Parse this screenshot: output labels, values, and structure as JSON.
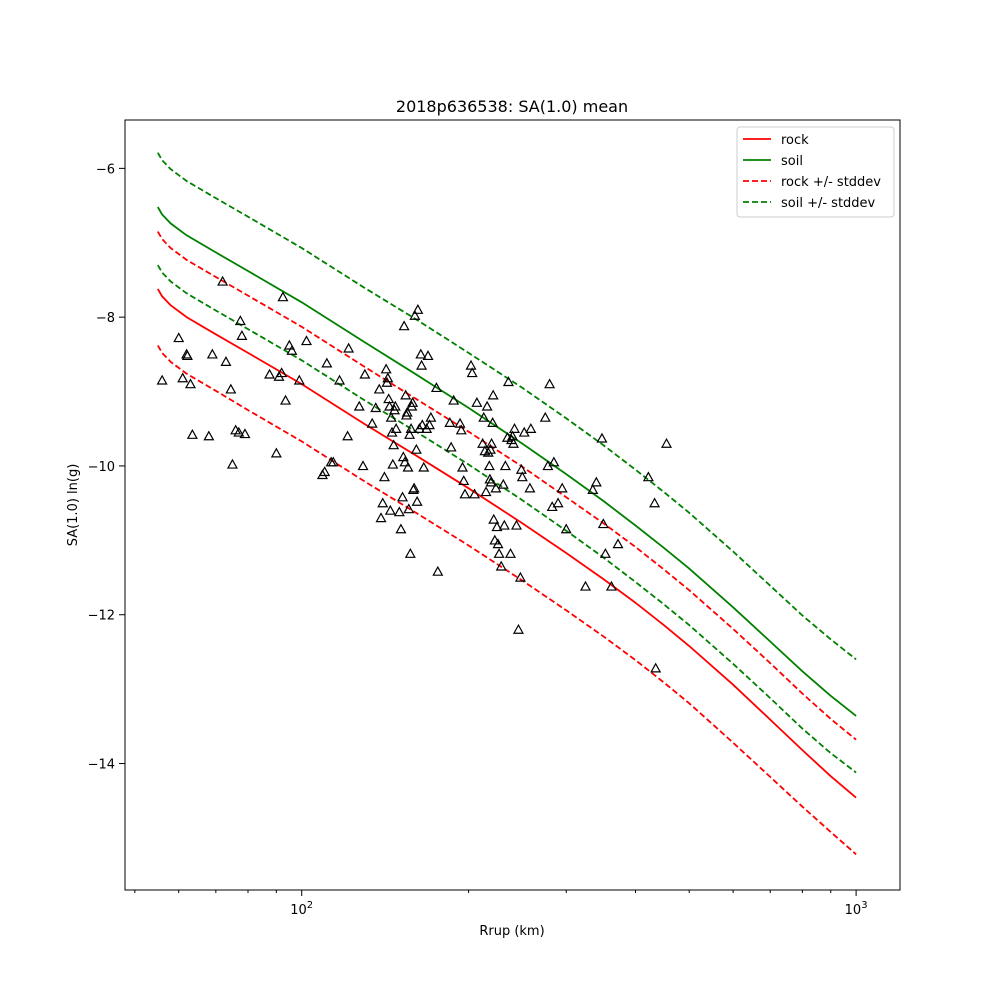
{
  "chart_data": {
    "type": "scatter",
    "title": "2018p636538: SA(1.0) mean",
    "xlabel": "Rrup (km)",
    "ylabel": "SA(1.0) ln(g)",
    "x_scale": "log",
    "xlim": [
      48,
      1200
    ],
    "ylim": [
      -15.7,
      -5.35
    ],
    "x_tick_labels": [
      {
        "value": 100,
        "base": "10",
        "exponent": "2"
      },
      {
        "value": 1000,
        "base": "10",
        "exponent": "3"
      }
    ],
    "y_ticks": [
      -14,
      -12,
      -10,
      -8,
      -6
    ],
    "grid": false,
    "legend_position": "upper right",
    "legend": [
      {
        "label": "rock",
        "color": "#ff0000",
        "style": "solid"
      },
      {
        "label": "soil",
        "color": "#008000",
        "style": "solid"
      },
      {
        "label": "rock +/- stddev",
        "color": "#ff0000",
        "style": "dashed"
      },
      {
        "label": "soil +/- stddev",
        "color": "#008000",
        "style": "dashed"
      }
    ],
    "curves": {
      "x": [
        55,
        56,
        58,
        62,
        70,
        80,
        100,
        130,
        160,
        200,
        250,
        300,
        350,
        400,
        450,
        500,
        600,
        700,
        800,
        900,
        1000
      ],
      "rock": [
        -7.62,
        -7.72,
        -7.84,
        -8.0,
        -8.23,
        -8.48,
        -8.9,
        -9.44,
        -9.85,
        -10.3,
        -10.77,
        -11.17,
        -11.52,
        -11.84,
        -12.14,
        -12.42,
        -12.94,
        -13.41,
        -13.82,
        -14.17,
        -14.46
      ],
      "soil": [
        -6.52,
        -6.62,
        -6.74,
        -6.9,
        -7.13,
        -7.38,
        -7.8,
        -8.34,
        -8.76,
        -9.22,
        -9.7,
        -10.11,
        -10.47,
        -10.8,
        -11.1,
        -11.38,
        -11.9,
        -12.36,
        -12.76,
        -13.09,
        -13.36
      ],
      "rock_plus_stddev": [
        -6.85,
        -6.95,
        -7.07,
        -7.23,
        -7.46,
        -7.71,
        -8.13,
        -8.67,
        -9.09,
        -9.54,
        -10.01,
        -10.42,
        -10.77,
        -11.09,
        -11.39,
        -11.67,
        -12.19,
        -12.65,
        -13.06,
        -13.4,
        -13.68
      ],
      "rock_minus_stddev": [
        -8.38,
        -8.48,
        -8.6,
        -8.76,
        -8.99,
        -9.25,
        -9.67,
        -10.21,
        -10.62,
        -11.07,
        -11.54,
        -11.94,
        -12.29,
        -12.61,
        -12.91,
        -13.19,
        -13.72,
        -14.18,
        -14.58,
        -14.92,
        -15.22
      ],
      "soil_plus_stddev": [
        -5.79,
        -5.89,
        -6.01,
        -6.17,
        -6.4,
        -6.65,
        -7.07,
        -7.61,
        -8.02,
        -8.48,
        -8.95,
        -9.36,
        -9.72,
        -10.05,
        -10.35,
        -10.63,
        -11.15,
        -11.61,
        -12.01,
        -12.33,
        -12.6
      ],
      "soil_minus_stddev": [
        -7.3,
        -7.4,
        -7.52,
        -7.68,
        -7.91,
        -8.16,
        -8.58,
        -9.12,
        -9.53,
        -9.98,
        -10.46,
        -10.87,
        -11.23,
        -11.56,
        -11.86,
        -12.14,
        -12.66,
        -13.12,
        -13.53,
        -13.86,
        -14.12
      ]
    },
    "observations": {
      "name": "observed",
      "marker": "triangle",
      "points": [
        [
          56,
          -8.85
        ],
        [
          60,
          -8.28
        ],
        [
          61,
          -8.82
        ],
        [
          62,
          -8.5
        ],
        [
          62.2,
          -8.52
        ],
        [
          63,
          -8.9
        ],
        [
          63.5,
          -9.58
        ],
        [
          68,
          -9.6
        ],
        [
          69,
          -8.5
        ],
        [
          73,
          -8.6
        ],
        [
          74.5,
          -8.97
        ],
        [
          75,
          -9.98
        ],
        [
          76,
          -9.52
        ],
        [
          77,
          -9.55
        ],
        [
          77.5,
          -8.05
        ],
        [
          78,
          -8.25
        ],
        [
          79,
          -9.57
        ],
        [
          72,
          -7.52
        ],
        [
          87.5,
          -8.77
        ],
        [
          90,
          -9.83
        ],
        [
          91,
          -8.8
        ],
        [
          92,
          -8.75
        ],
        [
          92.5,
          -7.73
        ],
        [
          93.5,
          -9.12
        ],
        [
          95,
          -8.38
        ],
        [
          96,
          -8.45
        ],
        [
          99,
          -8.85
        ],
        [
          102,
          -8.32
        ],
        [
          109,
          -10.12
        ],
        [
          110,
          -10.08
        ],
        [
          111,
          -8.62
        ],
        [
          113,
          -9.95
        ],
        [
          114,
          -9.95
        ],
        [
          117,
          -8.85
        ],
        [
          121,
          -9.6
        ],
        [
          121.5,
          -8.42
        ],
        [
          127,
          -9.2
        ],
        [
          129,
          -10
        ],
        [
          130,
          -8.77
        ],
        [
          134,
          -9.43
        ],
        [
          136,
          -9.22
        ],
        [
          138,
          -8.97
        ],
        [
          139,
          -10.7
        ],
        [
          140,
          -10.5
        ],
        [
          141,
          -10.15
        ],
        [
          142,
          -8.7
        ],
        [
          142.5,
          -8.88
        ],
        [
          143,
          -8.82
        ],
        [
          143.5,
          -9.1
        ],
        [
          144,
          -9.2
        ],
        [
          144.5,
          -10.6
        ],
        [
          145,
          -9.35
        ],
        [
          145.5,
          -9.55
        ],
        [
          146,
          -9.98
        ],
        [
          146.5,
          -9.72
        ],
        [
          147,
          -9.25
        ],
        [
          147.5,
          -9.2
        ],
        [
          148,
          -9.5
        ],
        [
          150,
          -10.62
        ],
        [
          151,
          -10.85
        ],
        [
          152,
          -10.42
        ],
        [
          152.5,
          -9.88
        ],
        [
          153,
          -8.12
        ],
        [
          153.5,
          -9.95
        ],
        [
          154,
          -9.05
        ],
        [
          154.5,
          -9.32
        ],
        [
          155,
          -9.28
        ],
        [
          155.5,
          -10.02
        ],
        [
          156,
          -10.58
        ],
        [
          156.5,
          -9.58
        ],
        [
          157,
          -11.18
        ],
        [
          157.5,
          -9.5
        ],
        [
          158,
          -9.2
        ],
        [
          158.5,
          -9.15
        ],
        [
          159,
          -10.32
        ],
        [
          159.5,
          -10.3
        ],
        [
          160,
          -7.98
        ],
        [
          161,
          -9.78
        ],
        [
          161.5,
          -10.48
        ],
        [
          162,
          -7.9
        ],
        [
          163,
          -9.5
        ],
        [
          164,
          -8.5
        ],
        [
          164.5,
          -8.65
        ],
        [
          165,
          -9.45
        ],
        [
          166,
          -10.02
        ],
        [
          168,
          -9.5
        ],
        [
          169,
          -8.52
        ],
        [
          170,
          -9.45
        ],
        [
          171,
          -9.35
        ],
        [
          175,
          -8.95
        ],
        [
          176,
          -11.42
        ],
        [
          185,
          -9.42
        ],
        [
          186,
          -9.75
        ],
        [
          188,
          -9.12
        ],
        [
          193,
          -9.43
        ],
        [
          194,
          -9.52
        ],
        [
          195,
          -10.02
        ],
        [
          196,
          -10.2
        ],
        [
          197,
          -10.38
        ],
        [
          202,
          -8.65
        ],
        [
          203,
          -8.75
        ],
        [
          205,
          -10.38
        ],
        [
          207,
          -9.15
        ],
        [
          212,
          -9.7
        ],
        [
          213,
          -9.35
        ],
        [
          214,
          -9.8
        ],
        [
          215,
          -10.35
        ],
        [
          216,
          -9.2
        ],
        [
          217,
          -9.82
        ],
        [
          218,
          -10.0
        ],
        [
          218.5,
          -10.18
        ],
        [
          219,
          -9.78
        ],
        [
          219.5,
          -10.22
        ],
        [
          220,
          -9.7
        ],
        [
          221,
          -9.42
        ],
        [
          221.5,
          -9.05
        ],
        [
          222,
          -10.72
        ],
        [
          223,
          -11.0
        ],
        [
          224,
          -10.3
        ],
        [
          225,
          -10.82
        ],
        [
          226,
          -11.05
        ],
        [
          227,
          -11.18
        ],
        [
          229,
          -11.35
        ],
        [
          231,
          -10.25
        ],
        [
          232,
          -10.8
        ],
        [
          233,
          -10.0
        ],
        [
          235,
          -9.62
        ],
        [
          236,
          -8.87
        ],
        [
          238,
          -11.18
        ],
        [
          239,
          -9.65
        ],
        [
          240,
          -9.6
        ],
        [
          241,
          -9.7
        ],
        [
          242,
          -9.5
        ],
        [
          244,
          -10.8
        ],
        [
          246,
          -12.2
        ],
        [
          248,
          -11.5
        ],
        [
          249,
          -10.05
        ],
        [
          250,
          -10.15
        ],
        [
          252,
          -9.55
        ],
        [
          258,
          -10.3
        ],
        [
          259,
          -9.5
        ],
        [
          275,
          -9.35
        ],
        [
          278,
          -10.0
        ],
        [
          280,
          -8.9
        ],
        [
          283,
          -10.55
        ],
        [
          285,
          -9.95
        ],
        [
          290,
          -10.5
        ],
        [
          295,
          -10.3
        ],
        [
          300,
          -10.85
        ],
        [
          325,
          -11.62
        ],
        [
          335,
          -10.32
        ],
        [
          340,
          -10.22
        ],
        [
          348,
          -9.63
        ],
        [
          350,
          -10.78
        ],
        [
          353,
          -11.18
        ],
        [
          362,
          -11.62
        ],
        [
          372,
          -11.05
        ],
        [
          422,
          -10.15
        ],
        [
          433,
          -10.5
        ],
        [
          435,
          -12.72
        ],
        [
          455,
          -9.7
        ]
      ]
    }
  }
}
